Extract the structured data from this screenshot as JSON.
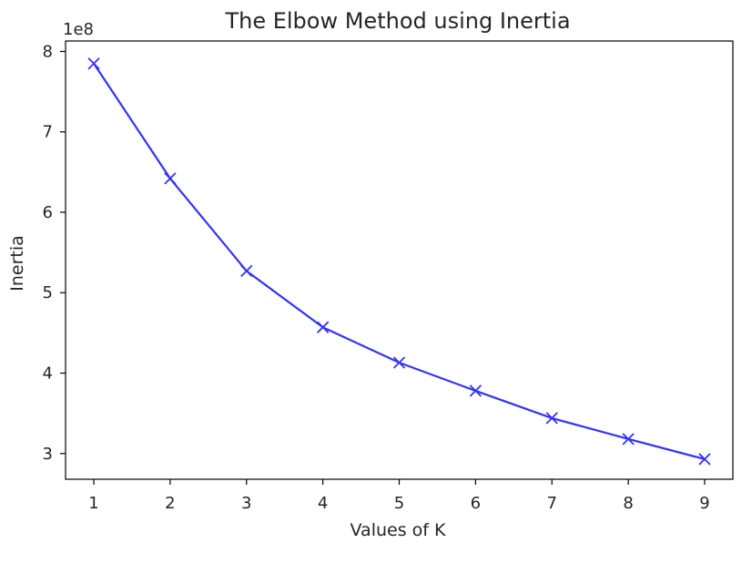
{
  "chart_data": {
    "type": "line",
    "title": "The Elbow Method using Inertia",
    "xlabel": "Values of K",
    "ylabel": "Inertia",
    "y_offset_label": "1e8",
    "x": [
      1,
      2,
      3,
      4,
      5,
      6,
      7,
      8,
      9
    ],
    "series": [
      {
        "values": [
          785000000.0,
          642000000.0,
          527000000.0,
          457000000.0,
          413000000.0,
          378000000.0,
          344000000.0,
          318000000.0,
          293000000.0
        ]
      }
    ],
    "xlim": [
      0.63,
      9.37
    ],
    "ylim": [
      268000000.0,
      813000000.0
    ],
    "x_ticks": [
      1,
      2,
      3,
      4,
      5,
      6,
      7,
      8,
      9
    ],
    "x_tick_labels": [
      "1",
      "2",
      "3",
      "4",
      "5",
      "6",
      "7",
      "8",
      "9"
    ],
    "y_ticks": [
      300000000.0,
      400000000.0,
      500000000.0,
      600000000.0,
      700000000.0,
      800000000.0
    ],
    "y_tick_labels": [
      "3",
      "4",
      "5",
      "6",
      "7",
      "8"
    ],
    "grid": false,
    "legend": "none",
    "marker": "x",
    "line_color": "#3333ff"
  }
}
